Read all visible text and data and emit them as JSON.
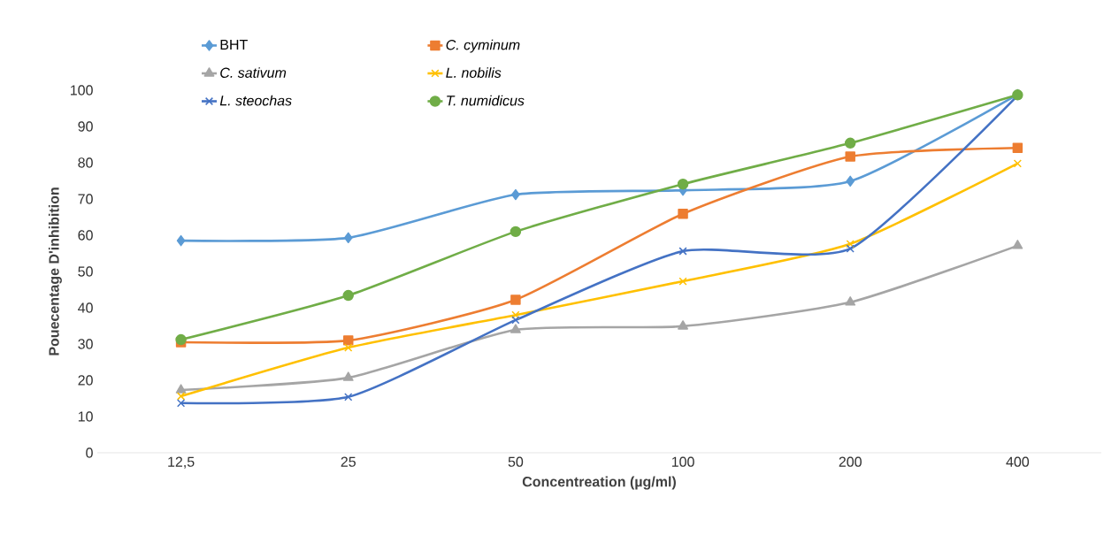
{
  "chart_data": {
    "type": "line",
    "xlabel": "Concentreation (µg/ml)",
    "ylabel": "Pouecentage D'inhibition",
    "categories": [
      "12,5",
      "25",
      "50",
      "100",
      "200",
      "400"
    ],
    "ylim": [
      0,
      100
    ],
    "yticks": [
      0,
      10,
      20,
      30,
      40,
      50,
      60,
      70,
      80,
      90,
      100
    ],
    "legend": "top left",
    "grid": false,
    "series": [
      {
        "name": "BHT",
        "color": "#5b9bd5",
        "marker": "diamond",
        "values": [
          58.5,
          59.3,
          71.2,
          72.4,
          74.9,
          98.8
        ]
      },
      {
        "name": "*C. cyminum*",
        "color": "#ed7d31",
        "marker": "square",
        "values": [
          30.5,
          31,
          42.2,
          65.9,
          81.7,
          84.1
        ]
      },
      {
        "name": "*C. sativum*",
        "color": "#a5a5a5",
        "marker": "triangle",
        "values": [
          17.3,
          20.7,
          33.9,
          34.9,
          41.5,
          57.1
        ]
      },
      {
        "name": "*L. nobilis*",
        "color": "#ffc000",
        "marker": "cross",
        "values": [
          15.6,
          29,
          38,
          47.3,
          57.6,
          79.8
        ]
      },
      {
        "name": "*L. steochas*",
        "color": "#4472c4",
        "marker": "cross",
        "values": [
          13.7,
          15.4,
          36.6,
          55.6,
          56.3,
          98.5
        ]
      },
      {
        "name": "*T. numidicus*",
        "color": "#70ad47",
        "marker": "circle",
        "values": [
          31.2,
          43.4,
          61,
          74.1,
          85.4,
          98.7
        ]
      }
    ]
  }
}
